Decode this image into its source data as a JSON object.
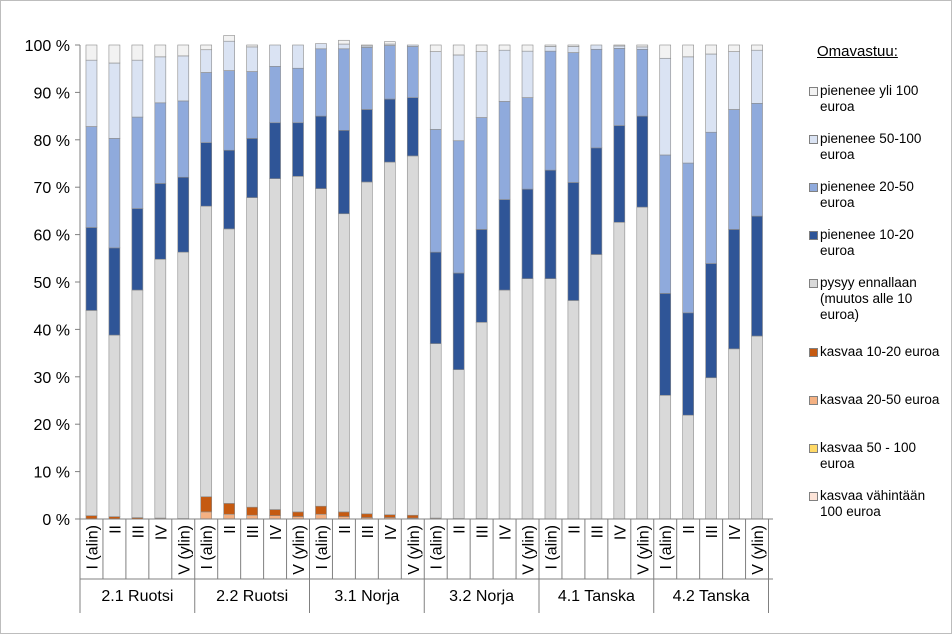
{
  "chart_data": {
    "type": "stacked-bar-100",
    "y_ticks": [
      "0 %",
      "10 %",
      "20 %",
      "30 %",
      "40 %",
      "50 %",
      "60 %",
      "70 %",
      "80 %",
      "90 %",
      "100 %"
    ],
    "ylim": [
      0,
      100
    ],
    "grid": false,
    "legend_position": "right",
    "legend_title": "Omavastuu:",
    "groups": [
      {
        "name": "2.1 Ruotsi",
        "categories": [
          "I (alin)",
          "II",
          "III",
          "IV",
          "V (ylin)"
        ]
      },
      {
        "name": "2.2 Ruotsi",
        "categories": [
          "I (alin)",
          "II",
          "III",
          "IV",
          "V (ylin)"
        ]
      },
      {
        "name": "3.1 Norja",
        "categories": [
          "I (alin)",
          "II",
          "III",
          "IV",
          "V (ylin)"
        ]
      },
      {
        "name": "3.2 Norja",
        "categories": [
          "I (alin)",
          "II",
          "III",
          "IV",
          "V (ylin)"
        ]
      },
      {
        "name": "4.1 Tanska",
        "categories": [
          "I (alin)",
          "II",
          "III",
          "IV",
          "V (ylin)"
        ]
      },
      {
        "name": "4.2 Tanska",
        "categories": [
          "I (alin)",
          "II",
          "III",
          "IV",
          "V (ylin)"
        ]
      }
    ],
    "series": [
      {
        "name": "kasvaa vähintään 100 euroa",
        "color": "#fde4d8",
        "values": [
          0,
          0,
          0,
          0,
          0,
          0,
          0,
          0,
          0,
          0,
          0,
          0,
          0,
          0,
          0,
          0,
          0,
          0,
          0,
          0,
          0,
          0,
          0,
          0,
          0,
          0,
          0,
          0,
          0,
          0
        ]
      },
      {
        "name": "kasvaa 50 - 100 euroa",
        "color": "#ffd966",
        "values": [
          0,
          0,
          0,
          0,
          0,
          0,
          0,
          0,
          0,
          0,
          0,
          0,
          0,
          0,
          0,
          0,
          0,
          0,
          0,
          0,
          0,
          0,
          0,
          0,
          0,
          0,
          0,
          0,
          0,
          0
        ]
      },
      {
        "name": "kasvaa 20-50 euroa",
        "color": "#f4b183",
        "values": [
          0,
          0,
          0,
          0,
          0,
          1.5,
          1,
          0.8,
          0.7,
          0.5,
          1,
          0.5,
          0.3,
          0.3,
          0.2,
          0,
          0,
          0,
          0,
          0,
          0,
          0,
          0,
          0,
          0,
          0,
          0,
          0,
          0,
          0
        ]
      },
      {
        "name": "kasvaa 10-20 euroa",
        "color": "#c55a11",
        "values": [
          0.7,
          0.5,
          0.3,
          0.2,
          0.1,
          3.2,
          2.3,
          1.7,
          1.3,
          1.0,
          1.7,
          1.0,
          0.8,
          0.6,
          0.6,
          0.2,
          0.1,
          0.1,
          0,
          0,
          0,
          0,
          0,
          0,
          0,
          0,
          0,
          0,
          0,
          0
        ]
      },
      {
        "name": "pysyy ennallaan (muutos alle 10 euroa)",
        "color": "#d9d9d9",
        "values": [
          43.3,
          38.3,
          48.0,
          54.6,
          56.2,
          61.3,
          57.9,
          65.3,
          69.8,
          70.8,
          67.0,
          62.9,
          70.0,
          74.4,
          75.8,
          36.8,
          31.4,
          41.4,
          48.3,
          50.7,
          50.7,
          46.1,
          55.8,
          62.6,
          65.8,
          26.1,
          21.9,
          29.8,
          35.9,
          38.6
        ]
      },
      {
        "name": "pienenee 10-20 euroa",
        "color": "#2f5597",
        "values": [
          17.5,
          18.4,
          17.2,
          16.0,
          15.8,
          13.4,
          16.6,
          12.5,
          11.8,
          11.3,
          15.3,
          17.6,
          15.3,
          13.3,
          12.3,
          19.3,
          20.4,
          19.6,
          19.1,
          18.9,
          22.9,
          24.9,
          22.5,
          20.4,
          19.2,
          21.5,
          21.6,
          24.1,
          25.2,
          25.3
        ]
      },
      {
        "name": "pienenee 20-50 euroa",
        "color": "#8faadc",
        "values": [
          21.3,
          23.1,
          19.3,
          17.0,
          16.1,
          14.8,
          16.8,
          14.1,
          11.9,
          11.5,
          14.2,
          17.2,
          13.1,
          11.3,
          10.8,
          25.9,
          27.9,
          23.6,
          20.7,
          19.3,
          25.1,
          27.4,
          20.8,
          16.3,
          14.1,
          29.2,
          31.6,
          27.7,
          25.3,
          23.8
        ]
      },
      {
        "name": "pienenee 50-100 euroa",
        "color": "#dae3f3",
        "values": [
          14.0,
          15.9,
          12.0,
          9.7,
          9.5,
          4.8,
          6.2,
          5.2,
          4.5,
          4.9,
          1.1,
          1.0,
          0.3,
          0.3,
          0.3,
          16.4,
          18.1,
          13.9,
          10.8,
          9.8,
          1.0,
          1.3,
          0.9,
          0.5,
          0.5,
          20.4,
          22.4,
          16.5,
          12.2,
          11.2
        ]
      },
      {
        "name": "pienenee yli 100 euroa",
        "color": "#f2f2f2",
        "values": [
          3.2,
          3.8,
          3.2,
          2.5,
          2.3,
          1.0,
          1.2,
          0.4,
          0.0,
          0.0,
          0.0,
          0.8,
          0.2,
          0.5,
          0.0,
          1.4,
          2.1,
          1.4,
          1.1,
          1.3,
          0.3,
          0.3,
          0.0,
          0.2,
          0.4,
          2.8,
          2.5,
          1.9,
          1.4,
          1.1
        ]
      }
    ]
  }
}
